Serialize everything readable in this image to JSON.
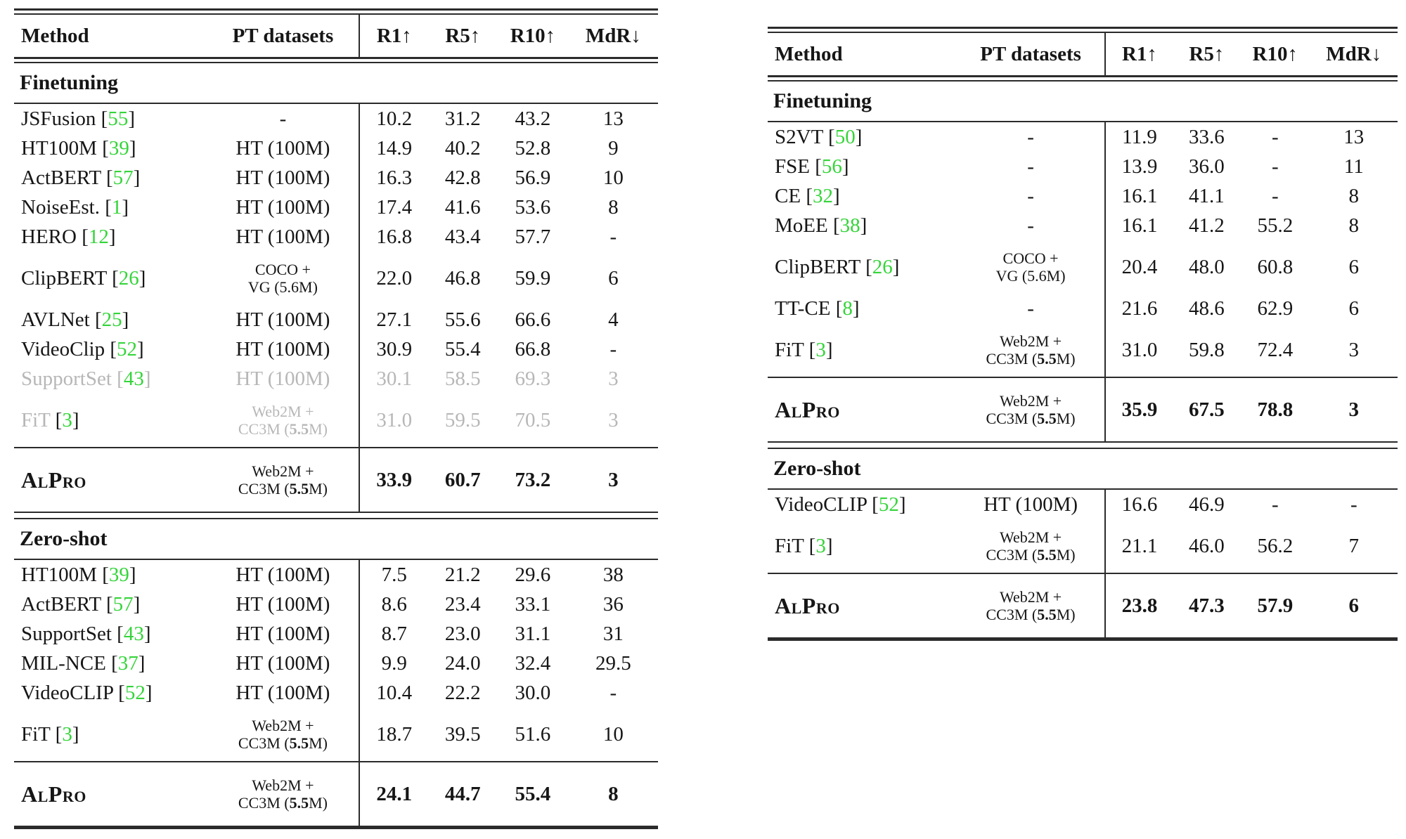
{
  "colors": {
    "green": "#35d43a",
    "muted": "#b7b7b7",
    "ink": "#161616",
    "rule": "#2b2b2b"
  },
  "header_labels": {
    "method": "Method",
    "pt": "PT datasets",
    "metrics": [
      "R1↑",
      "R5↑",
      "R10↑",
      "MdR↓"
    ]
  },
  "tables": [
    {
      "position": "left",
      "sections": [
        {
          "label": "Finetuning",
          "rows": [
            {
              "method": "JSFusion",
              "cite": "55",
              "pt": [
                "-"
              ],
              "vals": [
                "10.2",
                "31.2",
                "43.2",
                "13"
              ]
            },
            {
              "method": "HT100M",
              "cite": "39",
              "pt": [
                "HT (100M)"
              ],
              "vals": [
                "14.9",
                "40.2",
                "52.8",
                "9"
              ]
            },
            {
              "method": "ActBERT",
              "cite": "57",
              "pt": [
                "HT (100M)"
              ],
              "vals": [
                "16.3",
                "42.8",
                "56.9",
                "10"
              ]
            },
            {
              "method": "NoiseEst.",
              "cite": "1",
              "pt": [
                "HT (100M)"
              ],
              "vals": [
                "17.4",
                "41.6",
                "53.6",
                "8"
              ]
            },
            {
              "method": "HERO",
              "cite": "12",
              "pt": [
                "HT (100M)"
              ],
              "vals": [
                "16.8",
                "43.4",
                "57.7",
                "-"
              ]
            },
            {
              "method": "ClipBERT",
              "cite": "26",
              "pt": [
                "COCO +",
                "VG (5.6M)"
              ],
              "vals": [
                "22.0",
                "46.8",
                "59.9",
                "6"
              ]
            },
            {
              "method": "AVLNet",
              "cite": "25",
              "pt": [
                "HT (100M)"
              ],
              "vals": [
                "27.1",
                "55.6",
                "66.6",
                "4"
              ]
            },
            {
              "method": "VideoClip",
              "cite": "52",
              "pt": [
                "HT (100M)"
              ],
              "vals": [
                "30.9",
                "55.4",
                "66.8",
                "-"
              ]
            },
            {
              "method": "SupportSet",
              "cite": "43",
              "pt": [
                "HT (100M)"
              ],
              "vals": [
                "30.1",
                "58.5",
                "69.3",
                "3"
              ],
              "muted": true
            },
            {
              "method": "FiT",
              "cite": "3",
              "pt": [
                "Web2M +",
                "CC3M (**5.5**M)"
              ],
              "vals": [
                "31.0",
                "59.5",
                "70.5",
                "3"
              ],
              "muted": true,
              "dark_brackets": true
            }
          ],
          "highlight": {
            "method": "AlPro",
            "pt": [
              "Web2M +",
              "CC3M (**5.5**M)"
            ],
            "vals": [
              "33.9",
              "60.7",
              "73.2",
              "3"
            ]
          }
        },
        {
          "label": "Zero-shot",
          "rows": [
            {
              "method": "HT100M",
              "cite": "39",
              "pt": [
                "HT (100M)"
              ],
              "vals": [
                "7.5",
                "21.2",
                "29.6",
                "38"
              ]
            },
            {
              "method": "ActBERT",
              "cite": "57",
              "pt": [
                "HT (100M)"
              ],
              "vals": [
                "8.6",
                "23.4",
                "33.1",
                "36"
              ]
            },
            {
              "method": "SupportSet",
              "cite": "43",
              "pt": [
                "HT (100M)"
              ],
              "vals": [
                "8.7",
                "23.0",
                "31.1",
                "31"
              ]
            },
            {
              "method": "MIL-NCE",
              "cite": "37",
              "pt": [
                "HT (100M)"
              ],
              "vals": [
                "9.9",
                "24.0",
                "32.4",
                "29.5"
              ]
            },
            {
              "method": "VideoCLIP",
              "cite": "52",
              "pt": [
                "HT (100M)"
              ],
              "vals": [
                "10.4",
                "22.2",
                "30.0",
                "-"
              ]
            },
            {
              "method": "FiT",
              "cite": "3",
              "pt": [
                "Web2M +",
                "CC3M (**5.5**M)"
              ],
              "vals": [
                "18.7",
                "39.5",
                "51.6",
                "10"
              ]
            }
          ],
          "highlight": {
            "method": "AlPro",
            "pt": [
              "Web2M +",
              "CC3M (**5.5**M)"
            ],
            "vals": [
              "24.1",
              "44.7",
              "55.4",
              "8"
            ]
          }
        }
      ]
    },
    {
      "position": "right",
      "sections": [
        {
          "label": "Finetuning",
          "rows": [
            {
              "method": "S2VT",
              "cite": "50",
              "pt": [
                "-"
              ],
              "vals": [
                "11.9",
                "33.6",
                "-",
                "13"
              ]
            },
            {
              "method": "FSE",
              "cite": "56",
              "pt": [
                "-"
              ],
              "vals": [
                "13.9",
                "36.0",
                "-",
                "11"
              ]
            },
            {
              "method": "CE",
              "cite": "32",
              "pt": [
                "-"
              ],
              "vals": [
                "16.1",
                "41.1",
                "-",
                "8"
              ]
            },
            {
              "method": "MoEE",
              "cite": "38",
              "pt": [
                "-"
              ],
              "vals": [
                "16.1",
                "41.2",
                "55.2",
                "8"
              ]
            },
            {
              "method": "ClipBERT",
              "cite": "26",
              "pt": [
                "COCO +",
                "VG (5.6M)"
              ],
              "vals": [
                "20.4",
                "48.0",
                "60.8",
                "6"
              ]
            },
            {
              "method": "TT-CE",
              "cite": "8",
              "pt": [
                "-"
              ],
              "vals": [
                "21.6",
                "48.6",
                "62.9",
                "6"
              ]
            },
            {
              "method": "FiT",
              "cite": "3",
              "pt": [
                "Web2M +",
                "CC3M (**5.5**M)"
              ],
              "vals": [
                "31.0",
                "59.8",
                "72.4",
                "3"
              ]
            }
          ],
          "highlight": {
            "method": "AlPro",
            "pt": [
              "Web2M +",
              "CC3M (**5.5**M)"
            ],
            "vals": [
              "35.9",
              "67.5",
              "78.8",
              "3"
            ]
          }
        },
        {
          "label": "Zero-shot",
          "rows": [
            {
              "method": "VideoCLIP",
              "cite": "52",
              "pt": [
                "HT (100M)"
              ],
              "vals": [
                "16.6",
                "46.9",
                "-",
                "-"
              ]
            },
            {
              "method": "FiT",
              "cite": "3",
              "pt": [
                "Web2M +",
                "CC3M (**5.5**M)"
              ],
              "vals": [
                "21.1",
                "46.0",
                "56.2",
                "7"
              ]
            }
          ],
          "highlight": {
            "method": "AlPro",
            "pt": [
              "Web2M +",
              "CC3M (**5.5**M)"
            ],
            "vals": [
              "23.8",
              "47.3",
              "57.9",
              "6"
            ]
          }
        }
      ]
    }
  ]
}
